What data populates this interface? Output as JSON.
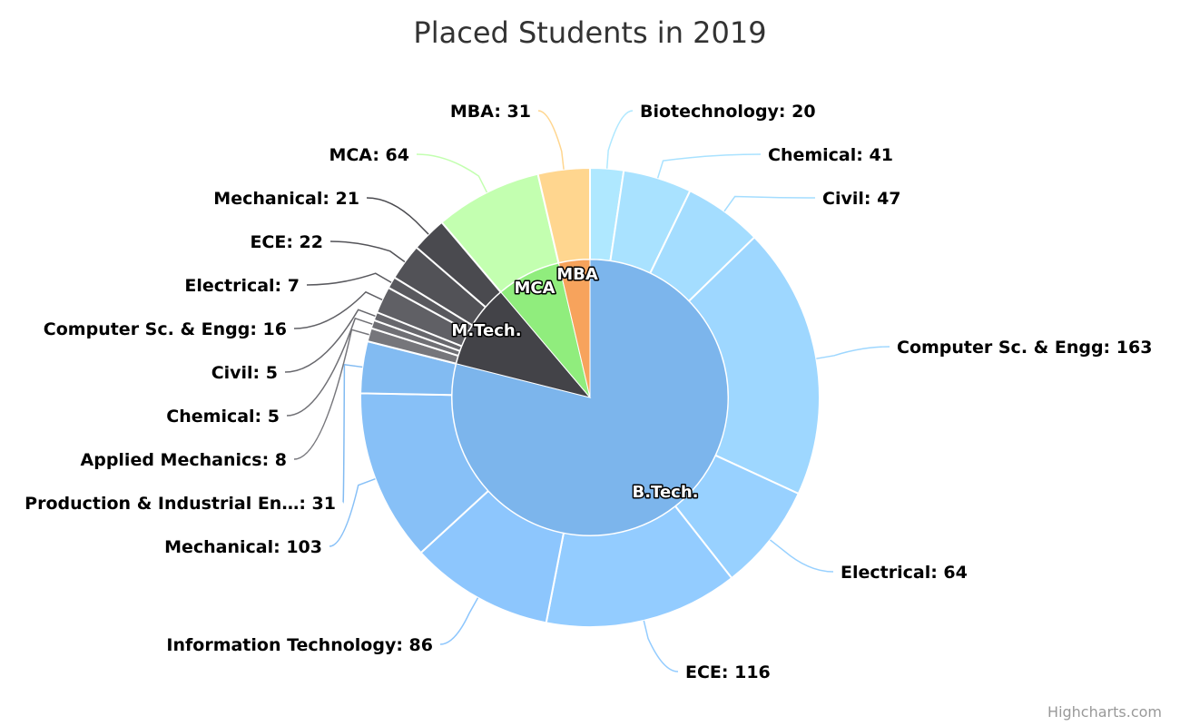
{
  "chart_data": {
    "type": "pie",
    "variant": "donut-drilldown",
    "title": "Placed Students in 2019",
    "credits": "Highcharts.com",
    "series": [
      {
        "category": "B.Tech.",
        "color": "#7cb5ec",
        "items": [
          {
            "name": "Biotechnology",
            "value": 20
          },
          {
            "name": "Chemical",
            "value": 41
          },
          {
            "name": "Civil",
            "value": 47
          },
          {
            "name": "Computer Sc. & Engg",
            "value": 163
          },
          {
            "name": "Electrical",
            "value": 64
          },
          {
            "name": "ECE",
            "value": 116
          },
          {
            "name": "Information Technology",
            "value": 86
          },
          {
            "name": "Mechanical",
            "value": 103
          },
          {
            "name": "Production & Industrial En…",
            "value": 31
          }
        ]
      },
      {
        "category": "M.Tech.",
        "color": "#434348",
        "items": [
          {
            "name": "Applied Mechanics",
            "value": 8
          },
          {
            "name": "Chemical",
            "value": 5
          },
          {
            "name": "Civil",
            "value": 5
          },
          {
            "name": "Computer Sc. & Engg",
            "value": 16
          },
          {
            "name": "Electrical",
            "value": 7
          },
          {
            "name": "ECE",
            "value": 22
          },
          {
            "name": "Mechanical",
            "value": 21
          }
        ]
      },
      {
        "category": "MCA",
        "color": "#90ed7d",
        "items": [
          {
            "name": "MCA",
            "value": 64
          }
        ]
      },
      {
        "category": "MBA",
        "color": "#f7a35c",
        "items": [
          {
            "name": "MBA",
            "value": 31
          }
        ]
      }
    ]
  }
}
